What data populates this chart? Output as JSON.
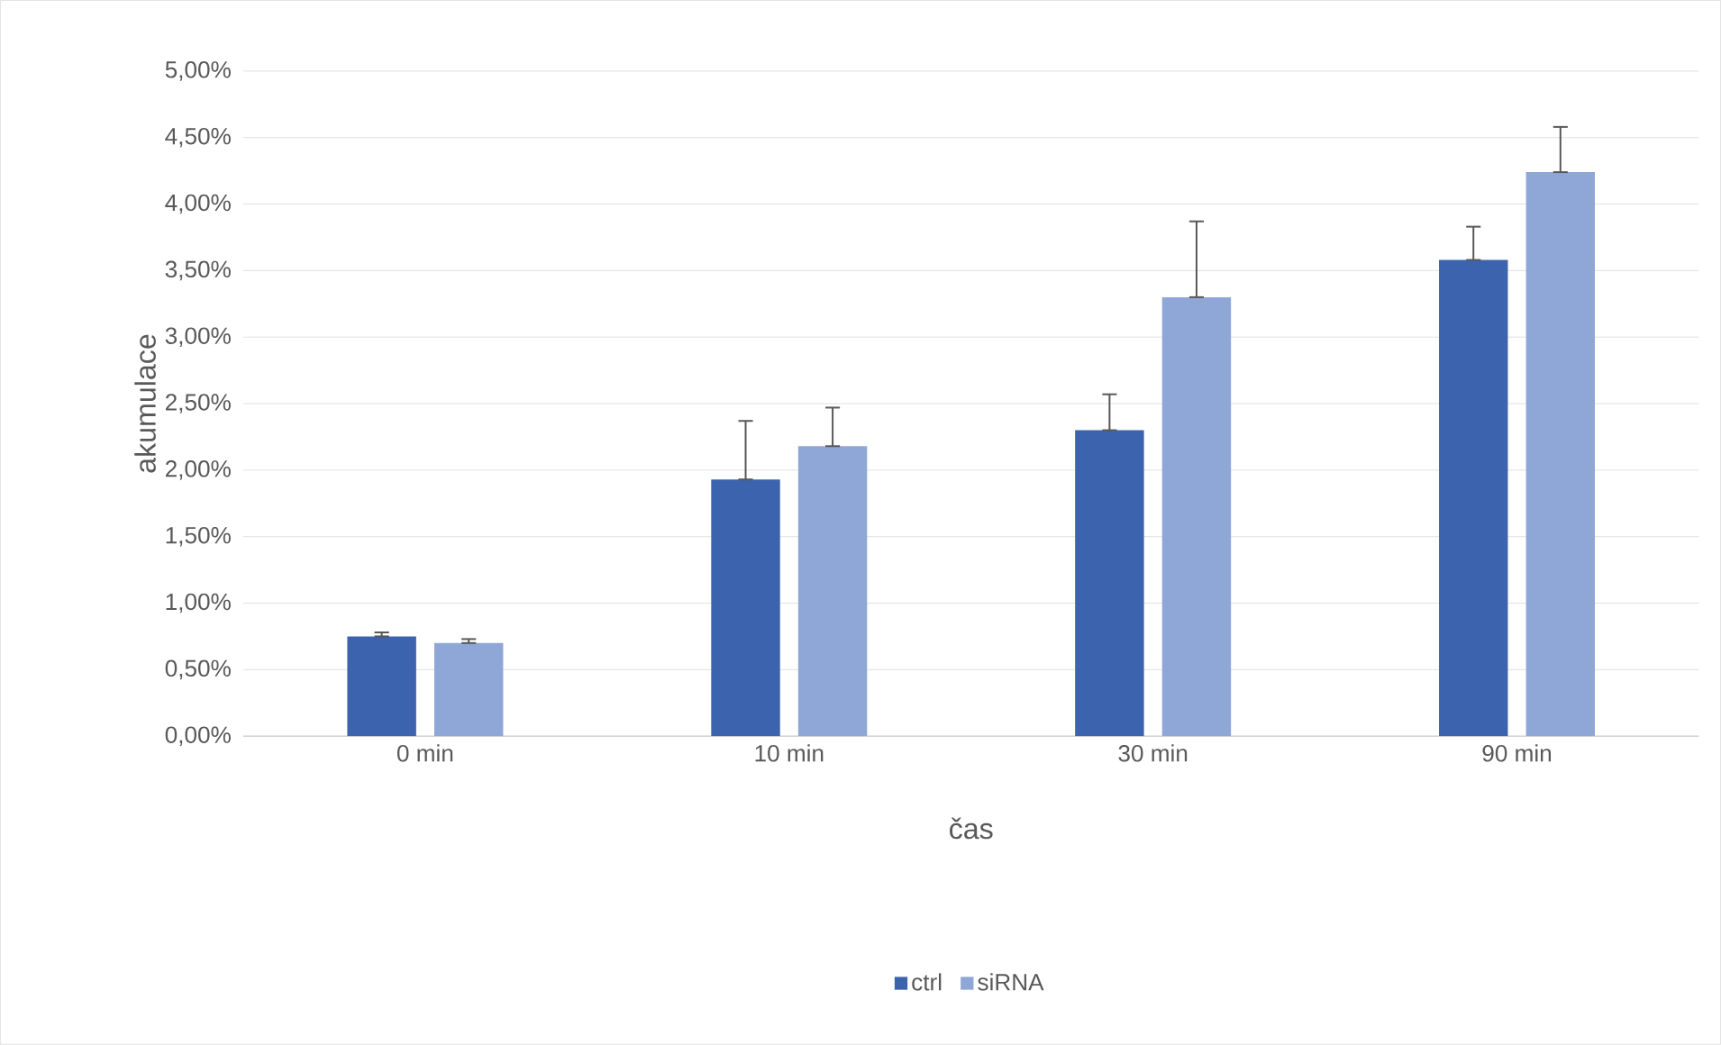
{
  "chart_data": {
    "type": "bar",
    "xlabel": "čas",
    "ylabel": "akumulace",
    "categories": [
      "0 min",
      "10 min",
      "30 min",
      "90 min"
    ],
    "series": [
      {
        "name": "ctrl",
        "color": "#3c64ae",
        "values": [
          0.75,
          1.93,
          2.3,
          3.58
        ],
        "errors": [
          [
            0.75,
            0.78
          ],
          [
            1.93,
            2.37
          ],
          [
            2.3,
            2.57
          ],
          [
            3.58,
            3.83
          ]
        ]
      },
      {
        "name": "siRNA",
        "color": "#8fa7d6",
        "values": [
          0.7,
          2.18,
          3.3,
          4.24
        ],
        "errors": [
          [
            0.7,
            0.73
          ],
          [
            2.18,
            2.47
          ],
          [
            3.3,
            3.87
          ],
          [
            4.24,
            4.58
          ]
        ]
      }
    ],
    "ylim": [
      0,
      5
    ],
    "yticks": [
      {
        "value": 0,
        "label": "0,00%"
      },
      {
        "value": 0.5,
        "label": "0,50%"
      },
      {
        "value": 1,
        "label": "1,00%"
      },
      {
        "value": 1.5,
        "label": "1,50%"
      },
      {
        "value": 2,
        "label": "2,00%"
      },
      {
        "value": 2.5,
        "label": "2,50%"
      },
      {
        "value": 3,
        "label": "3,00%"
      },
      {
        "value": 3.5,
        "label": "3,50%"
      },
      {
        "value": 4,
        "label": "4,00%"
      },
      {
        "value": 4.5,
        "label": "4,50%"
      },
      {
        "value": 5,
        "label": "5,00%"
      }
    ],
    "grid": "y",
    "legend": "bottom"
  }
}
